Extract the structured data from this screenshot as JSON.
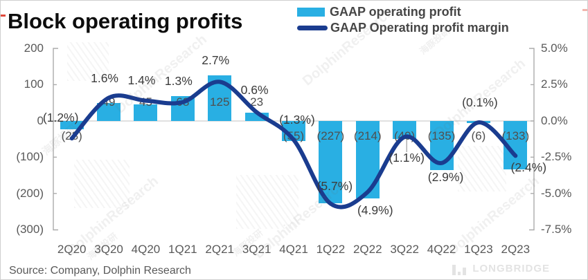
{
  "page": {
    "title": "Block operating profits",
    "source": "Source: Company, Dolphin Research"
  },
  "legend": {
    "items": [
      {
        "label": "GAAP operating profit",
        "marker": "bar"
      },
      {
        "label": "GAAP Operating profit margin",
        "marker": "line"
      }
    ]
  },
  "colors": {
    "bar": "#29AFE3",
    "line": "#1A3C8F",
    "axis_line": "#ABABAB",
    "gridline": "#D6D6D6",
    "axis_text": "#595959",
    "bar_label_text": "#4F4F4F",
    "margin_label_text": "#3B3B3B"
  },
  "watermarks": {
    "brand": "LONGBRIDGE",
    "texts": [
      "DolphinResearch",
      "海豚投研"
    ]
  },
  "chart_data": {
    "type": "combo",
    "categories": [
      "2Q20",
      "3Q20",
      "4Q20",
      "1Q21",
      "2Q21",
      "3Q21",
      "4Q21",
      "1Q22",
      "2Q22",
      "3Q22",
      "4Q22",
      "1Q23",
      "2Q23"
    ],
    "series": [
      {
        "name": "GAAP operating profit",
        "chart_type": "bar",
        "axis": "left",
        "unit": "USD millions",
        "values": [
          -23,
          49,
          45,
          68,
          125,
          23,
          -55,
          -227,
          -214,
          -49,
          -135,
          -6,
          -133
        ],
        "labels": [
          "(23)",
          "49",
          "45",
          "68",
          "125",
          "23",
          "(55)",
          "(227)",
          "(214)",
          "(49)",
          "(135)",
          "(6)",
          "(133)"
        ]
      },
      {
        "name": "GAAP Operating profit margin",
        "chart_type": "line",
        "axis": "right",
        "unit": "%",
        "values": [
          -1.2,
          1.6,
          1.4,
          1.3,
          2.7,
          0.6,
          -1.3,
          -5.7,
          -4.9,
          -1.1,
          -2.9,
          -0.1,
          -2.4
        ],
        "labels": [
          "(1.2%)",
          "1.6%",
          "1.4%",
          "1.3%",
          "2.7%",
          "0.6%",
          "(1.3%)",
          "(5.7%)",
          "(4.9%)",
          "(1.1%)",
          "(2.9%)",
          "(0.1%)",
          "(2.4%)"
        ]
      }
    ],
    "left_axis": {
      "ticks": [
        "200",
        "100",
        "0",
        "(100)",
        "(200)",
        "(300)"
      ],
      "range": [
        200,
        -300
      ]
    },
    "right_axis": {
      "ticks": [
        "5.0%",
        "2.5%",
        "0.0%",
        "-2.5%",
        "-5.0%",
        "-7.5%"
      ],
      "range": [
        5.0,
        -7.5
      ]
    },
    "grid": "zero-line-only",
    "legend_position": "top-right"
  }
}
